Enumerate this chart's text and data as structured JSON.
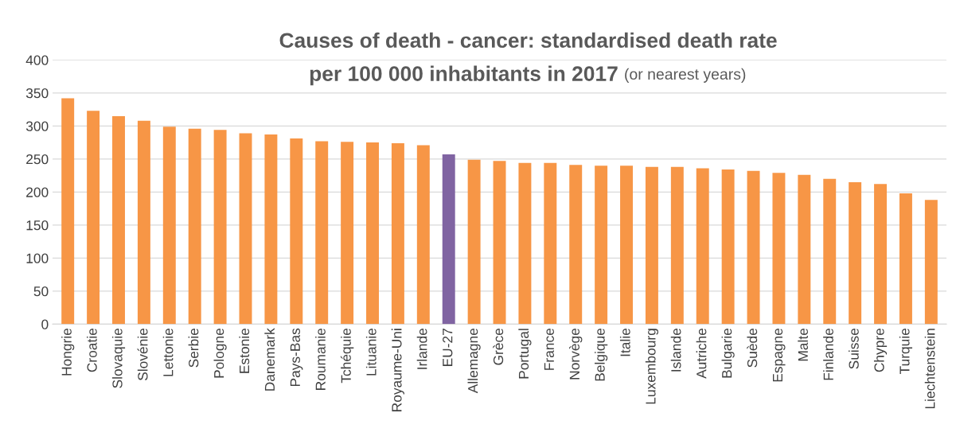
{
  "chart_data": {
    "type": "bar",
    "title": "Causes of death - cancer: standardised death rate\nper 100 000 inhabitants in 2017",
    "subtitle": "(or nearest years)",
    "categories": [
      "Hongrie",
      "Croatie",
      "Slovaquie",
      "Slovénie",
      "Lettonie",
      "Serbie",
      "Pologne",
      "Estonie",
      "Danemark",
      "Pays-Bas",
      "Roumanie",
      "Tchéquie",
      "Lituanie",
      "Royaume-Uni",
      "Irlande",
      "EU-27",
      "Allemagne",
      "Grèce",
      "Portugal",
      "France",
      "Norvège",
      "Belgique",
      "Italie",
      "Luxembourg",
      "Islande",
      "Autriche",
      "Bulgarie",
      "Suède",
      "Espagne",
      "Malte",
      "Finlande",
      "Suisse",
      "Chypre",
      "Turquie",
      "Liechtenstein"
    ],
    "values": [
      342,
      323,
      315,
      308,
      299,
      296,
      294,
      289,
      287,
      281,
      277,
      276,
      275,
      274,
      271,
      257,
      249,
      247,
      244,
      244,
      241,
      240,
      240,
      238,
      238,
      236,
      234,
      232,
      229,
      226,
      220,
      215,
      212,
      198,
      188
    ],
    "colors": [
      "#f79646",
      "#f79646",
      "#f79646",
      "#f79646",
      "#f79646",
      "#f79646",
      "#f79646",
      "#f79646",
      "#f79646",
      "#f79646",
      "#f79646",
      "#f79646",
      "#f79646",
      "#f79646",
      "#f79646",
      "#8064a2",
      "#f79646",
      "#f79646",
      "#f79646",
      "#f79646",
      "#f79646",
      "#f79646",
      "#f79646",
      "#f79646",
      "#f79646",
      "#f79646",
      "#f79646",
      "#f79646",
      "#f79646",
      "#f79646",
      "#f79646",
      "#f79646",
      "#f79646",
      "#f79646",
      "#f79646"
    ],
    "ylim": [
      0,
      400
    ],
    "yticks": [
      0,
      50,
      100,
      150,
      200,
      250,
      300,
      350,
      400
    ],
    "grid": "y"
  }
}
